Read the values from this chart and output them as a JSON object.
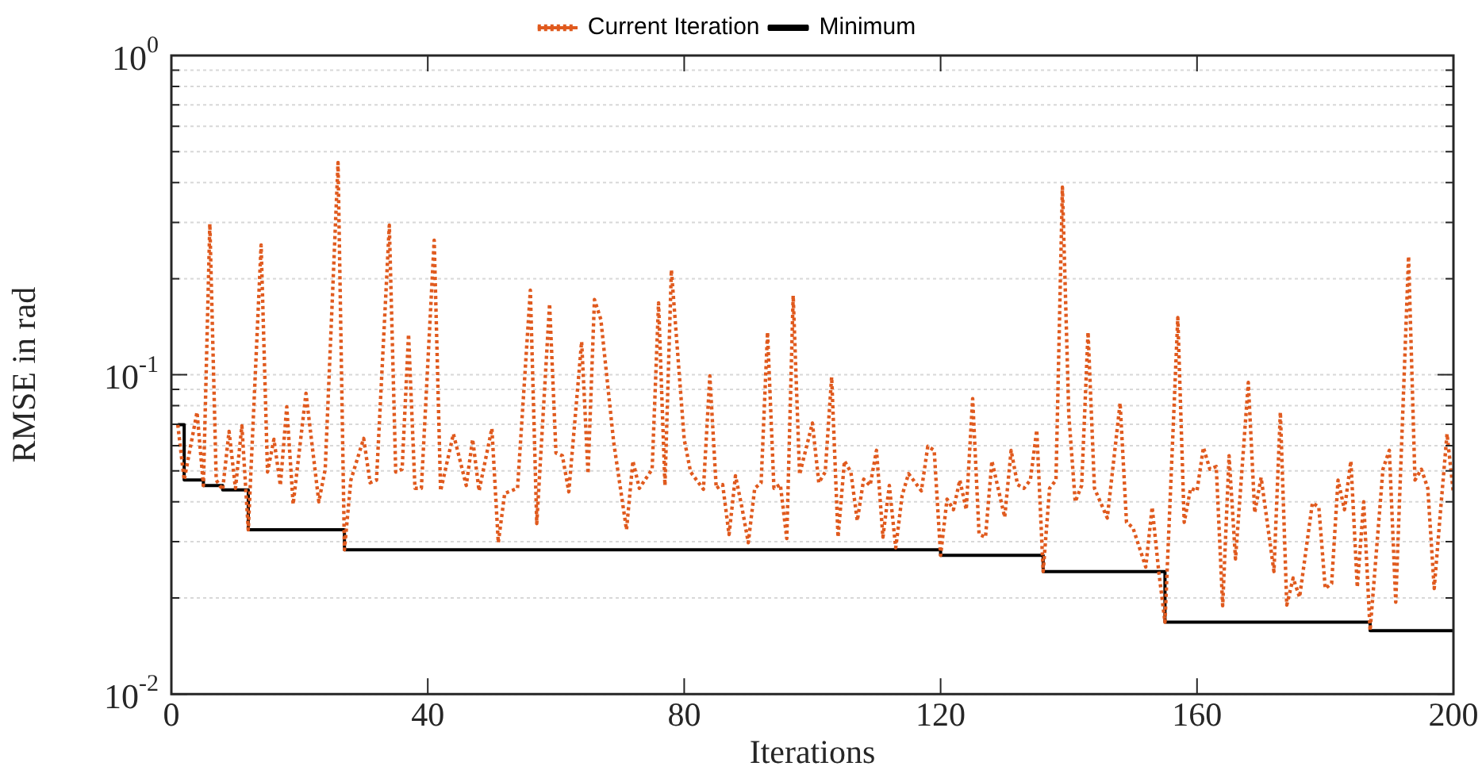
{
  "chart_data": {
    "type": "line",
    "xlabel": "Iterations",
    "ylabel": "RMSE in rad",
    "log": "y",
    "grid": "y",
    "legend": "top",
    "xlim": [
      0,
      200
    ],
    "xticks": [
      0,
      40,
      80,
      120,
      160,
      200
    ],
    "ylim": [
      0.01,
      1
    ],
    "yticks": [
      {
        "value": 0.01,
        "label": "10$^{-2}$"
      },
      {
        "value": 0.02,
        "label": null
      },
      {
        "value": 0.03,
        "label": null
      },
      {
        "value": 0.04,
        "label": null
      },
      {
        "value": 0.05,
        "label": null
      },
      {
        "value": 0.06,
        "label": null
      },
      {
        "value": 0.07,
        "label": null
      },
      {
        "value": 0.08,
        "label": null
      },
      {
        "value": 0.09,
        "label": null
      },
      {
        "value": 0.1,
        "label": "10$^{-1}$"
      },
      {
        "value": 0.2,
        "label": null
      },
      {
        "value": 0.3,
        "label": null
      },
      {
        "value": 0.4,
        "label": null
      },
      {
        "value": 0.5,
        "label": null
      },
      {
        "value": 0.6,
        "label": null
      },
      {
        "value": 0.7,
        "label": null
      },
      {
        "value": 0.8,
        "label": null
      },
      {
        "value": 0.9,
        "label": null
      },
      {
        "value": 1,
        "label": "10$^{0}$"
      }
    ],
    "series": [
      {
        "name": "Current Iteration",
        "line_style": "dotted",
        "color": "#e05a1e",
        "x": [
          1,
          2,
          4,
          5,
          6,
          7,
          8,
          9,
          10,
          11,
          12,
          14,
          15,
          16,
          17,
          18,
          19,
          21,
          23,
          24,
          26,
          27,
          28,
          30,
          31,
          32,
          34,
          35,
          36,
          37,
          38,
          39,
          41,
          42,
          44,
          46,
          47,
          48,
          50,
          51,
          52,
          54,
          56,
          57,
          59,
          60,
          61,
          62,
          64,
          65,
          66,
          67,
          69,
          71,
          72,
          73,
          75,
          76,
          77,
          78,
          80,
          81,
          83,
          84,
          85,
          86,
          87,
          88,
          89,
          90,
          91,
          92,
          93,
          94,
          95,
          96,
          97,
          98,
          100,
          101,
          102,
          103,
          104,
          105,
          106,
          107,
          108,
          109,
          110,
          111,
          112,
          113,
          114,
          115,
          117,
          118,
          119,
          120,
          121,
          122,
          123,
          124,
          125,
          126,
          127,
          128,
          130,
          131,
          132,
          133,
          134,
          135,
          136,
          137,
          138,
          139,
          140,
          141,
          142,
          143,
          144,
          146,
          148,
          149,
          150,
          152,
          153,
          154,
          155,
          157,
          158,
          159,
          160,
          161,
          162,
          163,
          164,
          165,
          166,
          168,
          169,
          170,
          172,
          173,
          174,
          175,
          176,
          178,
          179,
          180,
          181,
          182,
          183,
          184,
          185,
          186,
          187,
          189,
          190,
          191,
          193,
          194,
          195,
          196,
          197,
          198,
          199,
          200
        ],
        "values": [
          0.0698,
          0.0468,
          0.0764,
          0.045,
          0.297,
          0.0468,
          0.0436,
          0.0665,
          0.0441,
          0.0692,
          0.0327,
          0.255,
          0.0496,
          0.0628,
          0.045,
          0.0794,
          0.0393,
          0.0875,
          0.04,
          0.0506,
          0.462,
          0.0283,
          0.0468,
          0.0632,
          0.0459,
          0.0468,
          0.294,
          0.0496,
          0.0506,
          0.134,
          0.0441,
          0.0441,
          0.264,
          0.0433,
          0.0653,
          0.045,
          0.0628,
          0.0433,
          0.0679,
          0.0298,
          0.0425,
          0.0441,
          0.184,
          0.0342,
          0.167,
          0.0569,
          0.0558,
          0.043,
          0.127,
          0.049,
          0.172,
          0.149,
          0.0615,
          0.0327,
          0.0537,
          0.0441,
          0.0506,
          0.168,
          0.045,
          0.213,
          0.0628,
          0.0496,
          0.0438,
          0.0992,
          0.0441,
          0.0453,
          0.0316,
          0.0483,
          0.0385,
          0.0298,
          0.0441,
          0.0459,
          0.136,
          0.0441,
          0.0453,
          0.0307,
          0.177,
          0.0487,
          0.0706,
          0.0459,
          0.0496,
          0.0984,
          0.031,
          0.0537,
          0.0496,
          0.0349,
          0.0471,
          0.045,
          0.058,
          0.031,
          0.045,
          0.0287,
          0.0419,
          0.049,
          0.0433,
          0.0597,
          0.058,
          0.0272,
          0.0408,
          0.0378,
          0.0468,
          0.0378,
          0.0842,
          0.0316,
          0.031,
          0.0537,
          0.0358,
          0.058,
          0.0453,
          0.0441,
          0.0468,
          0.0671,
          0.0242,
          0.0441,
          0.0468,
          0.387,
          0.0748,
          0.04,
          0.045,
          0.136,
          0.0441,
          0.0356,
          0.0816,
          0.0345,
          0.0332,
          0.025,
          0.0385,
          0.0245,
          0.0168,
          0.151,
          0.0345,
          0.0441,
          0.0433,
          0.0592,
          0.0506,
          0.0516,
          0.0189,
          0.0558,
          0.0265,
          0.0946,
          0.037,
          0.0477,
          0.0242,
          0.0764,
          0.019,
          0.0231,
          0.0201,
          0.0397,
          0.0385,
          0.0214,
          0.0222,
          0.0468,
          0.0378,
          0.0537,
          0.0216,
          0.04,
          0.0158,
          0.0506,
          0.058,
          0.0194,
          0.235,
          0.0468,
          0.0506,
          0.0441,
          0.0214,
          0.0378,
          0.0653,
          0.0425
        ]
      },
      {
        "name": "Minimum",
        "type": "step",
        "line_style": "solid",
        "color": "#000000",
        "x": [
          1,
          2,
          5,
          8,
          12,
          27,
          120,
          136,
          155,
          187,
          200
        ],
        "values": [
          0.0698,
          0.0468,
          0.045,
          0.0436,
          0.0327,
          0.0283,
          0.0272,
          0.0242,
          0.0168,
          0.0158,
          0.0158
        ]
      }
    ]
  }
}
